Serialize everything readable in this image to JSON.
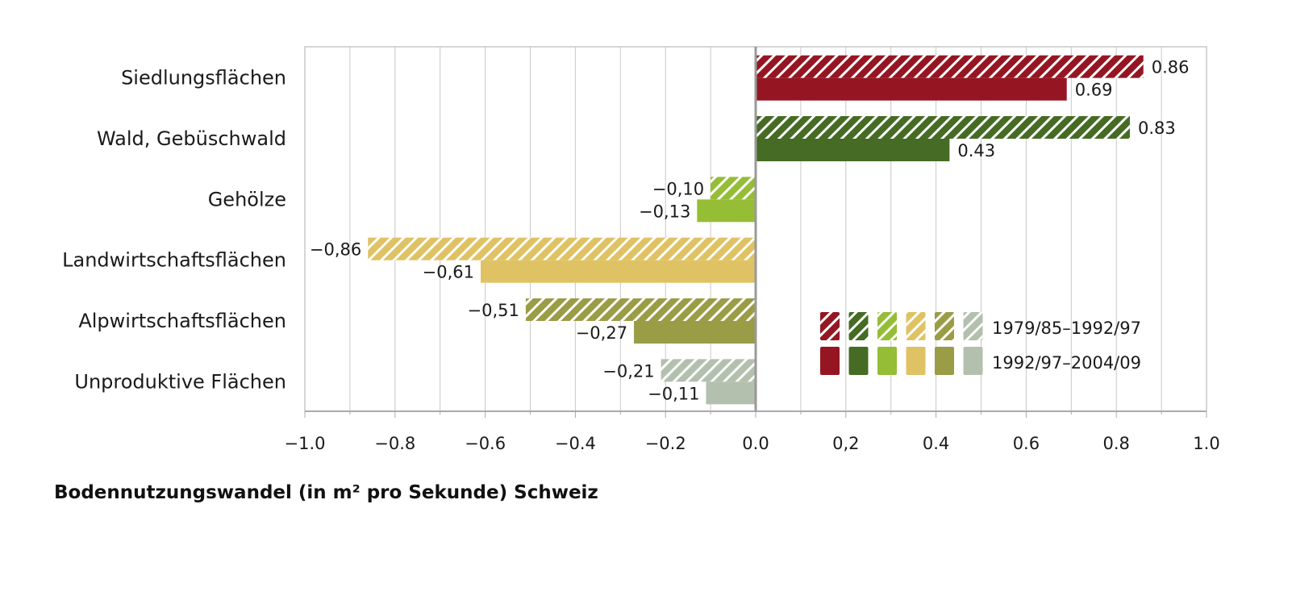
{
  "chart_data": {
    "type": "bar",
    "orientation": "horizontal",
    "title": "Bodennutzungswandel (in m² pro Sekunde) Schweiz",
    "xlabel": "",
    "ylabel": "",
    "xlim": [
      -1.0,
      1.0
    ],
    "grid": true,
    "legend_placement": "bottom-right",
    "x_tick_labels": [
      "−1.0",
      "−0.8",
      "−0.6",
      "−0.4",
      "−0.2",
      "0.0",
      "0,2",
      "0.4",
      "0.6",
      "0.8",
      "1.0"
    ],
    "x_ticks": [
      -1.0,
      -0.8,
      -0.6,
      -0.4,
      -0.2,
      0.0,
      0.2,
      0.4,
      0.6,
      0.8,
      1.0
    ],
    "categories": [
      "Siedlungsflächen",
      "Wald, Gebüschwald",
      "Gehölze",
      "Landwirtschaftsflächen",
      "Alpwirtschaftsflächen",
      "Unproduktive Flächen"
    ],
    "colors": [
      "#951622",
      "#466b24",
      "#95bd35",
      "#dfc263",
      "#9a9c46",
      "#b2c0ad"
    ],
    "series": [
      {
        "name": "1979/85–1992/97",
        "pattern": "hatched",
        "values": [
          0.86,
          0.83,
          -0.1,
          -0.86,
          -0.51,
          -0.21
        ],
        "labels": [
          "0.86",
          "0.83",
          "−0,10",
          "−0,86",
          "−0,51",
          "−0,21"
        ]
      },
      {
        "name": "1992/97–2004/09",
        "pattern": "solid",
        "values": [
          0.69,
          0.43,
          -0.13,
          -0.61,
          -0.27,
          -0.11
        ],
        "labels": [
          "0.69",
          "0.43",
          "−0,13",
          "−0,61",
          "−0,27",
          "−0,11"
        ]
      }
    ]
  }
}
